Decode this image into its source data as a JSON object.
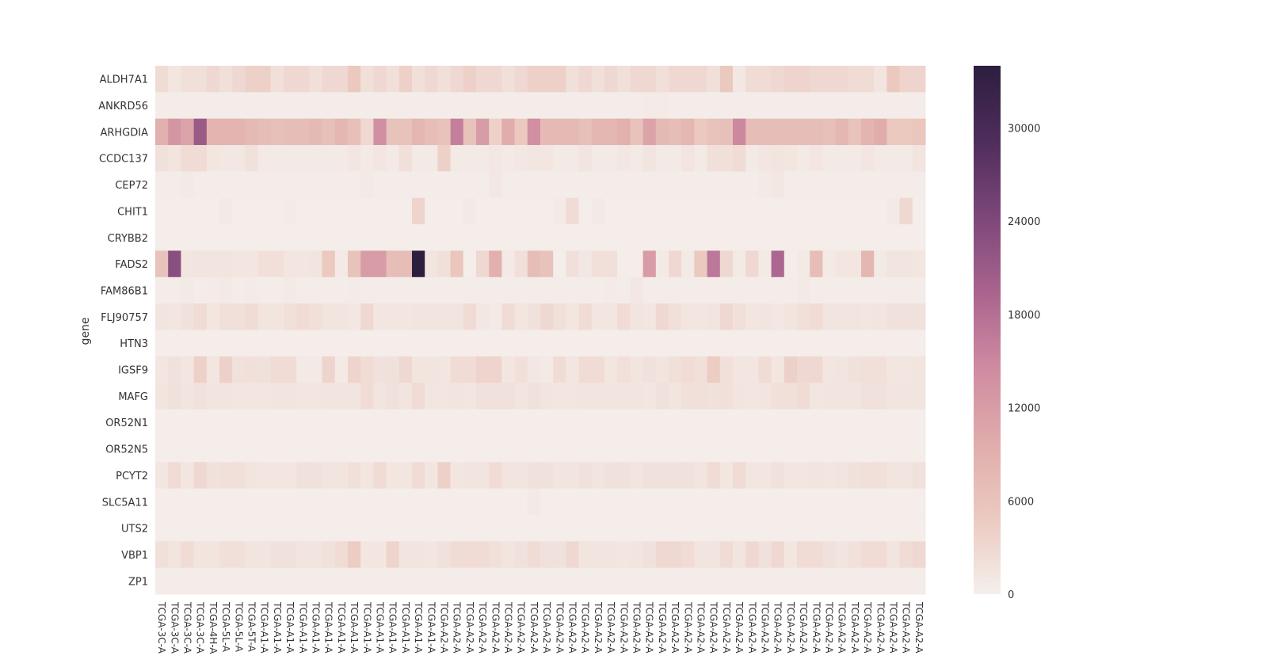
{
  "chart_data": {
    "type": "heatmap",
    "ylabel": "gene",
    "xlabel": "",
    "rows": [
      "ALDH7A1",
      "ANKRD56",
      "ARHGDIA",
      "CCDC137",
      "CEP72",
      "CHIT1",
      "CRYBB2",
      "FADS2",
      "FAM86B1",
      "FLJ90757",
      "HTN3",
      "IGSF9",
      "MAFG",
      "OR52N1",
      "OR52N5",
      "PCYT2",
      "SLC5A11",
      "UTS2",
      "VBP1",
      "ZP1"
    ],
    "columns": [
      "TCGA-3C-A",
      "TCGA-3C-A",
      "TCGA-3C-A",
      "TCGA-3C-A",
      "TCGA-4H-A",
      "TCGA-5L-A",
      "TCGA-5L-A",
      "TCGA-5T-A",
      "TCGA-A1-A",
      "TCGA-A1-A",
      "TCGA-A1-A",
      "TCGA-A1-A",
      "TCGA-A1-A",
      "TCGA-A1-A",
      "TCGA-A1-A",
      "TCGA-A1-A",
      "TCGA-A1-A",
      "TCGA-A1-A",
      "TCGA-A1-A",
      "TCGA-A1-A",
      "TCGA-A1-A",
      "TCGA-A1-A",
      "TCGA-A2-A",
      "TCGA-A2-A",
      "TCGA-A2-A",
      "TCGA-A2-A",
      "TCGA-A2-A",
      "TCGA-A2-A",
      "TCGA-A2-A",
      "TCGA-A2-A",
      "TCGA-A2-A",
      "TCGA-A2-A",
      "TCGA-A2-A",
      "TCGA-A2-A",
      "TCGA-A2-A",
      "TCGA-A2-A",
      "TCGA-A2-A",
      "TCGA-A2-A",
      "TCGA-A2-A",
      "TCGA-A2-A",
      "TCGA-A2-A",
      "TCGA-A2-A",
      "TCGA-A2-A",
      "TCGA-A2-A",
      "TCGA-A2-A",
      "TCGA-A2-A",
      "TCGA-A2-A",
      "TCGA-A2-A",
      "TCGA-A2-A",
      "TCGA-A2-A",
      "TCGA-A2-A",
      "TCGA-A2-A",
      "TCGA-A2-A",
      "TCGA-A2-A",
      "TCGA-A2-A",
      "TCGA-A2-A",
      "TCGA-A2-A",
      "TCGA-A2-A",
      "TCGA-A2-A",
      "TCGA-A2-A"
    ],
    "values": [
      [
        2500,
        1200,
        2000,
        2000,
        3000,
        2000,
        3000,
        4000,
        4000,
        2000,
        3000,
        3000,
        2000,
        3000,
        3000,
        5000,
        2000,
        3000,
        2000,
        4000,
        2000,
        3000,
        2000,
        3000,
        4000,
        3000,
        3000,
        2000,
        3000,
        4000,
        4000,
        4000,
        2000,
        3000,
        2000,
        3000,
        2000,
        3000,
        3000,
        2000,
        3000,
        3000,
        3000,
        2000,
        5000,
        1000,
        2500,
        2500,
        3000,
        3500,
        3500,
        3000,
        3000,
        3000,
        2500,
        2500,
        1500,
        5000,
        3500,
        3500
      ],
      [
        400,
        400,
        400,
        400,
        400,
        400,
        400,
        400,
        400,
        400,
        400,
        400,
        400,
        400,
        400,
        400,
        400,
        400,
        400,
        400,
        400,
        400,
        400,
        400,
        400,
        400,
        400,
        400,
        400,
        400,
        400,
        400,
        400,
        400,
        400,
        400,
        400,
        400,
        700,
        700,
        400,
        400,
        400,
        400,
        400,
        400,
        400,
        400,
        400,
        400,
        400,
        400,
        400,
        400,
        400,
        400,
        400,
        400,
        400,
        400
      ],
      [
        9000,
        13000,
        11000,
        21000,
        8500,
        8500,
        8500,
        7500,
        7000,
        6500,
        7000,
        7000,
        7500,
        6500,
        8000,
        6500,
        3000,
        14000,
        6000,
        6000,
        8000,
        7000,
        6000,
        16000,
        6000,
        12000,
        4000,
        9500,
        5000,
        14000,
        7500,
        7500,
        7500,
        6500,
        8000,
        8000,
        9000,
        6000,
        11000,
        7500,
        7000,
        8000,
        5000,
        6000,
        6500,
        15000,
        7000,
        7000,
        7000,
        7000,
        7000,
        7000,
        6500,
        8000,
        6000,
        8500,
        9500,
        5000,
        5000,
        5500
      ],
      [
        1800,
        1500,
        2500,
        2500,
        1200,
        1000,
        1000,
        1800,
        800,
        800,
        800,
        800,
        800,
        800,
        800,
        1200,
        800,
        1200,
        800,
        2000,
        800,
        800,
        4000,
        800,
        800,
        800,
        1000,
        800,
        1000,
        1200,
        1200,
        800,
        800,
        1500,
        800,
        800,
        1000,
        800,
        1500,
        800,
        800,
        1500,
        800,
        2000,
        2000,
        2500,
        800,
        1200,
        1500,
        1200,
        800,
        1200,
        800,
        800,
        800,
        1200,
        800,
        800,
        800,
        1500
      ],
      [
        400,
        400,
        800,
        400,
        400,
        400,
        400,
        400,
        400,
        400,
        400,
        400,
        400,
        400,
        400,
        400,
        800,
        400,
        400,
        400,
        400,
        400,
        400,
        400,
        400,
        400,
        1000,
        400,
        400,
        400,
        400,
        400,
        400,
        400,
        400,
        400,
        400,
        400,
        400,
        400,
        400,
        400,
        400,
        400,
        400,
        400,
        400,
        800,
        1000,
        400,
        400,
        400,
        400,
        400,
        400,
        400,
        400,
        400,
        400,
        400
      ],
      [
        300,
        300,
        300,
        300,
        300,
        800,
        300,
        300,
        300,
        300,
        600,
        300,
        300,
        300,
        300,
        300,
        300,
        300,
        300,
        300,
        3500,
        300,
        300,
        300,
        800,
        300,
        300,
        300,
        300,
        300,
        300,
        800,
        2500,
        300,
        800,
        300,
        300,
        300,
        300,
        300,
        300,
        300,
        300,
        300,
        300,
        300,
        300,
        300,
        300,
        300,
        300,
        300,
        300,
        300,
        300,
        300,
        300,
        800,
        3000,
        300
      ],
      [
        300,
        300,
        300,
        300,
        300,
        300,
        300,
        300,
        300,
        300,
        300,
        300,
        300,
        300,
        300,
        300,
        300,
        300,
        300,
        300,
        300,
        300,
        300,
        300,
        300,
        300,
        300,
        300,
        300,
        300,
        300,
        300,
        300,
        300,
        300,
        300,
        300,
        300,
        300,
        300,
        300,
        300,
        300,
        300,
        300,
        300,
        300,
        300,
        300,
        300,
        300,
        300,
        300,
        300,
        300,
        300,
        300,
        300,
        300,
        300
      ],
      [
        6000,
        23000,
        1200,
        1500,
        1500,
        1500,
        1200,
        1200,
        2000,
        2000,
        1200,
        1200,
        1500,
        5000,
        800,
        6000,
        12000,
        12000,
        7000,
        7000,
        34000,
        1500,
        2000,
        5500,
        300,
        3000,
        9000,
        800,
        2000,
        7000,
        6000,
        300,
        2000,
        1000,
        2000,
        2000,
        300,
        300,
        12000,
        800,
        3000,
        800,
        5000,
        17000,
        3000,
        800,
        3000,
        800,
        19000,
        300,
        800,
        7000,
        800,
        1200,
        1200,
        8000,
        800,
        1500,
        1500,
        1200
      ],
      [
        400,
        400,
        800,
        400,
        600,
        800,
        400,
        600,
        400,
        400,
        800,
        400,
        400,
        400,
        400,
        600,
        400,
        400,
        400,
        400,
        400,
        400,
        400,
        400,
        400,
        400,
        400,
        400,
        400,
        400,
        400,
        400,
        400,
        400,
        400,
        600,
        400,
        1000,
        400,
        400,
        400,
        400,
        400,
        400,
        400,
        400,
        400,
        400,
        400,
        400,
        800,
        400,
        400,
        400,
        400,
        400,
        400,
        400,
        400,
        400
      ],
      [
        1500,
        1200,
        1800,
        2500,
        1200,
        2000,
        2000,
        2500,
        1500,
        1500,
        2000,
        2500,
        2000,
        1500,
        1500,
        1000,
        3000,
        1200,
        1200,
        1200,
        1500,
        1500,
        1500,
        1500,
        2500,
        1000,
        800,
        2500,
        1200,
        1800,
        3000,
        2000,
        1200,
        2500,
        1200,
        1200,
        2500,
        1500,
        1200,
        3000,
        2000,
        1200,
        1200,
        1500,
        3000,
        2000,
        1200,
        1500,
        1000,
        1500,
        2000,
        2500,
        1500,
        1500,
        1500,
        1200,
        1500,
        1800,
        1800,
        1800
      ],
      [
        300,
        300,
        300,
        300,
        300,
        300,
        300,
        300,
        300,
        300,
        300,
        300,
        300,
        300,
        300,
        300,
        300,
        300,
        300,
        300,
        300,
        300,
        300,
        300,
        300,
        300,
        300,
        300,
        300,
        300,
        300,
        300,
        300,
        300,
        300,
        300,
        300,
        300,
        300,
        300,
        300,
        300,
        300,
        300,
        300,
        300,
        300,
        300,
        300,
        300,
        300,
        300,
        300,
        300,
        300,
        300,
        300,
        300,
        300,
        300
      ],
      [
        1200,
        1800,
        1200,
        4000,
        1200,
        4000,
        1800,
        2000,
        1800,
        2500,
        2500,
        800,
        800,
        3500,
        800,
        3500,
        2500,
        1800,
        1800,
        3000,
        1500,
        1500,
        1200,
        2500,
        2500,
        3500,
        3500,
        1200,
        2000,
        1000,
        800,
        2500,
        1200,
        2500,
        2500,
        1200,
        2000,
        1500,
        1800,
        1500,
        2000,
        2500,
        2000,
        4500,
        2000,
        1200,
        1200,
        2500,
        1200,
        4000,
        3000,
        3000,
        1200,
        1500,
        1800,
        2000,
        2000,
        1200,
        1200,
        1500
      ],
      [
        1500,
        1800,
        1500,
        1800,
        1500,
        1500,
        1200,
        1200,
        1200,
        1500,
        1500,
        1200,
        1200,
        1500,
        1500,
        1500,
        2500,
        1500,
        1800,
        1500,
        2500,
        1200,
        1200,
        1500,
        1200,
        1800,
        1800,
        1800,
        1500,
        1800,
        1500,
        1200,
        1200,
        1500,
        1500,
        1500,
        1500,
        1500,
        1200,
        1800,
        1500,
        2000,
        2000,
        1800,
        2000,
        1500,
        1200,
        1500,
        2000,
        2000,
        2500,
        1200,
        1500,
        1500,
        1500,
        1800,
        1800,
        1500,
        1500,
        1500
      ],
      [
        300,
        300,
        300,
        300,
        300,
        300,
        300,
        300,
        300,
        300,
        300,
        300,
        300,
        300,
        300,
        300,
        300,
        300,
        300,
        300,
        300,
        300,
        300,
        300,
        300,
        300,
        300,
        300,
        300,
        300,
        300,
        300,
        300,
        300,
        300,
        300,
        300,
        300,
        300,
        300,
        300,
        300,
        300,
        300,
        300,
        300,
        300,
        300,
        300,
        300,
        300,
        300,
        300,
        300,
        300,
        300,
        300,
        300,
        300,
        300
      ],
      [
        300,
        300,
        300,
        300,
        300,
        300,
        300,
        300,
        300,
        300,
        300,
        300,
        300,
        300,
        300,
        300,
        300,
        300,
        300,
        300,
        300,
        300,
        300,
        300,
        300,
        300,
        300,
        300,
        300,
        300,
        300,
        300,
        300,
        300,
        300,
        300,
        300,
        300,
        300,
        300,
        300,
        300,
        300,
        300,
        300,
        300,
        300,
        300,
        300,
        300,
        300,
        300,
        300,
        300,
        300,
        300,
        300,
        300,
        300,
        300
      ],
      [
        1200,
        2500,
        1200,
        3000,
        1800,
        2000,
        2000,
        1500,
        1200,
        1200,
        1200,
        1800,
        1800,
        1500,
        1500,
        2000,
        1200,
        2500,
        1200,
        1200,
        2500,
        1200,
        4000,
        1200,
        1500,
        1500,
        2500,
        1500,
        1500,
        1800,
        1800,
        1500,
        1500,
        1800,
        1500,
        1800,
        1800,
        1500,
        1800,
        1800,
        1800,
        1800,
        1500,
        2500,
        1200,
        2500,
        1200,
        1200,
        1800,
        1200,
        1200,
        1500,
        1200,
        1500,
        1800,
        2000,
        2000,
        1500,
        1500,
        1800
      ],
      [
        300,
        300,
        300,
        300,
        300,
        300,
        300,
        300,
        300,
        300,
        300,
        300,
        300,
        300,
        300,
        300,
        300,
        300,
        300,
        300,
        300,
        300,
        300,
        300,
        300,
        300,
        300,
        300,
        300,
        800,
        300,
        300,
        300,
        300,
        300,
        300,
        300,
        300,
        300,
        300,
        300,
        300,
        300,
        300,
        300,
        300,
        300,
        300,
        300,
        300,
        300,
        300,
        300,
        300,
        300,
        300,
        300,
        300,
        300,
        300
      ],
      [
        300,
        300,
        300,
        300,
        300,
        300,
        300,
        300,
        300,
        300,
        300,
        300,
        300,
        300,
        300,
        300,
        300,
        300,
        300,
        300,
        300,
        300,
        300,
        300,
        300,
        300,
        300,
        300,
        300,
        300,
        300,
        300,
        300,
        300,
        300,
        300,
        300,
        300,
        300,
        300,
        300,
        300,
        300,
        300,
        300,
        300,
        300,
        300,
        300,
        300,
        300,
        300,
        300,
        300,
        300,
        300,
        300,
        300,
        300,
        300
      ],
      [
        2000,
        1500,
        2500,
        1500,
        1500,
        2000,
        2000,
        1500,
        1500,
        1800,
        1800,
        1500,
        1500,
        1800,
        2500,
        4500,
        1200,
        1200,
        3500,
        1500,
        1500,
        1200,
        1800,
        2500,
        2500,
        2500,
        2000,
        1500,
        1800,
        2500,
        1800,
        1800,
        3000,
        1500,
        1500,
        1500,
        1200,
        1500,
        1800,
        3000,
        3000,
        2500,
        1500,
        1500,
        2500,
        1500,
        3000,
        1800,
        3000,
        1200,
        2500,
        2500,
        1800,
        1500,
        1800,
        2500,
        2500,
        1500,
        2500,
        3000
      ],
      [
        400,
        400,
        400,
        400,
        400,
        400,
        400,
        400,
        400,
        400,
        400,
        400,
        400,
        400,
        400,
        400,
        400,
        400,
        400,
        400,
        400,
        400,
        400,
        400,
        400,
        400,
        400,
        400,
        400,
        400,
        400,
        400,
        400,
        400,
        400,
        400,
        400,
        400,
        400,
        400,
        400,
        400,
        400,
        400,
        400,
        400,
        400,
        400,
        400,
        400,
        400,
        400,
        400,
        400,
        400,
        400,
        400,
        400,
        400,
        400
      ]
    ],
    "vmin": 0,
    "vmax": 34000,
    "colorbar_ticks": [
      0,
      6000,
      12000,
      18000,
      24000,
      30000
    ],
    "colors": [
      "#f5efec",
      "#ebcac0",
      "#e0acab",
      "#cf8ba1",
      "#a9648e",
      "#7c4779",
      "#4f2d5c",
      "#2d1e3e"
    ]
  }
}
